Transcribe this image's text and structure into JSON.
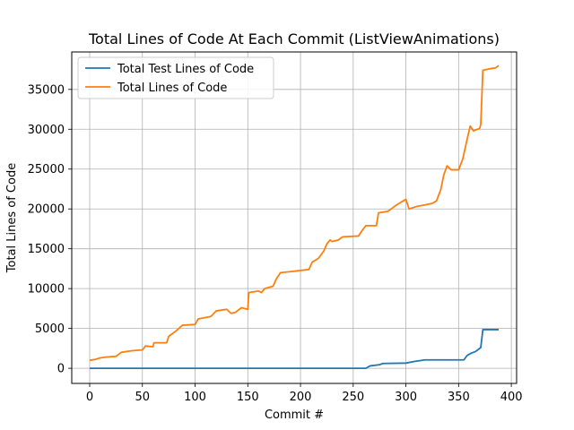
{
  "chart_data": {
    "type": "line",
    "title": "Total Lines of Code At Each Commit (ListViewAnimations)",
    "xlabel": "Commit #",
    "ylabel": "Total Lines of Code",
    "xlim": [
      -17,
      405
    ],
    "ylim": [
      -1900,
      39700
    ],
    "xticks": [
      0,
      50,
      100,
      150,
      200,
      250,
      300,
      350,
      400
    ],
    "yticks": [
      0,
      5000,
      10000,
      15000,
      20000,
      25000,
      30000,
      35000
    ],
    "grid": true,
    "legend_position": "top-left",
    "series": [
      {
        "name": "Total Test Lines of Code",
        "color": "#1f77b4",
        "points": [
          [
            0,
            0
          ],
          [
            262,
            0
          ],
          [
            266,
            300
          ],
          [
            275,
            450
          ],
          [
            278,
            600
          ],
          [
            300,
            650
          ],
          [
            308,
            850
          ],
          [
            318,
            1050
          ],
          [
            355,
            1050
          ],
          [
            358,
            1600
          ],
          [
            362,
            1900
          ],
          [
            366,
            2100
          ],
          [
            371,
            2600
          ],
          [
            373,
            4850
          ],
          [
            385,
            4850
          ],
          [
            388,
            4850
          ]
        ]
      },
      {
        "name": "Total Lines of Code",
        "color": "#ff7f0e",
        "points": [
          [
            0,
            1000
          ],
          [
            5,
            1100
          ],
          [
            10,
            1300
          ],
          [
            15,
            1400
          ],
          [
            25,
            1500
          ],
          [
            30,
            2000
          ],
          [
            40,
            2200
          ],
          [
            50,
            2300
          ],
          [
            53,
            2800
          ],
          [
            60,
            2700
          ],
          [
            61,
            3200
          ],
          [
            73,
            3200
          ],
          [
            75,
            4000
          ],
          [
            82,
            4700
          ],
          [
            88,
            5400
          ],
          [
            100,
            5500
          ],
          [
            103,
            6200
          ],
          [
            115,
            6500
          ],
          [
            120,
            7200
          ],
          [
            130,
            7400
          ],
          [
            134,
            6900
          ],
          [
            138,
            7000
          ],
          [
            144,
            7600
          ],
          [
            150,
            7400
          ],
          [
            151,
            9500
          ],
          [
            160,
            9700
          ],
          [
            163,
            9500
          ],
          [
            166,
            10000
          ],
          [
            174,
            10300
          ],
          [
            177,
            11200
          ],
          [
            181,
            12000
          ],
          [
            195,
            12200
          ],
          [
            208,
            12400
          ],
          [
            211,
            13300
          ],
          [
            217,
            13800
          ],
          [
            222,
            14700
          ],
          [
            225,
            15600
          ],
          [
            228,
            16100
          ],
          [
            230,
            15900
          ],
          [
            236,
            16100
          ],
          [
            240,
            16500
          ],
          [
            255,
            16600
          ],
          [
            258,
            17200
          ],
          [
            262,
            17900
          ],
          [
            272,
            17900
          ],
          [
            274,
            19500
          ],
          [
            283,
            19700
          ],
          [
            290,
            20400
          ],
          [
            296,
            20900
          ],
          [
            300,
            21200
          ],
          [
            303,
            20000
          ],
          [
            310,
            20300
          ],
          [
            318,
            20500
          ],
          [
            325,
            20700
          ],
          [
            329,
            21000
          ],
          [
            333,
            22400
          ],
          [
            336,
            24300
          ],
          [
            339,
            25400
          ],
          [
            343,
            24900
          ],
          [
            350,
            24900
          ],
          [
            354,
            26300
          ],
          [
            358,
            28700
          ],
          [
            361,
            30400
          ],
          [
            364,
            29800
          ],
          [
            370,
            30100
          ],
          [
            371,
            30600
          ],
          [
            373,
            37400
          ],
          [
            380,
            37600
          ],
          [
            385,
            37700
          ],
          [
            388,
            38000
          ]
        ]
      }
    ]
  }
}
